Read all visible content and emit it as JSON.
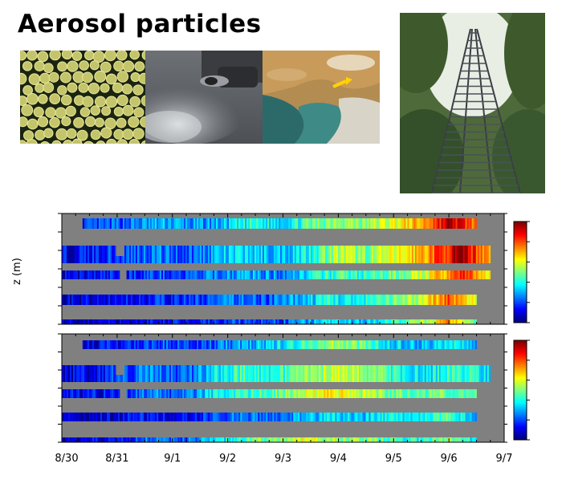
{
  "heading": "Aerosol particles",
  "photos": [
    {
      "icon": "particles-microscope-photo"
    },
    {
      "icon": "exhaust-smoke-photo"
    },
    {
      "icon": "satellite-dust-photo"
    },
    {
      "icon": "measurement-tower-photo"
    }
  ],
  "chart_data": {
    "type": "heatmap",
    "ylabel": "z (m)",
    "xlabel": "",
    "x_ticks": [
      "8/30",
      "8/31",
      "9/1",
      "9/2",
      "9/3",
      "9/4",
      "9/5",
      "9/6",
      "9/7"
    ],
    "xlim": [
      "8/30",
      "9/7"
    ],
    "colormap": "jet",
    "panels": [
      {
        "levels": [
          {
            "start": "8/30 09:00",
            "end": "9/6 12:00",
            "profile": [
              0.15,
              0.2,
              0.25,
              0.3,
              0.25,
              0.3,
              0.4,
              0.35,
              0.45,
              0.55,
              0.5,
              0.6,
              0.7,
              0.95,
              0.75
            ]
          },
          {
            "start": "8/30",
            "end": "9/6 18:00",
            "profile": [
              0.1,
              0.15,
              0.2,
              0.25,
              0.2,
              0.3,
              0.35,
              0.3,
              0.4,
              0.55,
              0.5,
              0.6,
              0.75,
              0.95,
              0.7
            ]
          },
          {
            "start": "8/30",
            "end": "9/6 18:00",
            "profile": [
              0.1,
              0.12,
              0.15,
              0.2,
              0.18,
              0.25,
              0.3,
              0.25,
              0.35,
              0.45,
              0.4,
              0.5,
              0.6,
              0.85,
              0.6
            ]
          },
          {
            "start": "8/30",
            "end": "9/6 12:00",
            "profile": [
              0.08,
              0.1,
              0.12,
              0.15,
              0.15,
              0.2,
              0.25,
              0.2,
              0.3,
              0.4,
              0.35,
              0.45,
              0.55,
              0.8,
              0.55
            ]
          },
          {
            "start": "8/30",
            "end": "9/6 12:00",
            "profile": [
              0.06,
              0.08,
              0.1,
              0.12,
              0.12,
              0.15,
              0.2,
              0.18,
              0.25,
              0.35,
              0.3,
              0.4,
              0.5,
              0.7,
              0.5
            ]
          }
        ]
      },
      {
        "levels": [
          {
            "start": "8/30 09:00",
            "end": "9/6 12:00",
            "profile": [
              0.1,
              0.12,
              0.15,
              0.2,
              0.15,
              0.25,
              0.3,
              0.35,
              0.45,
              0.55,
              0.45,
              0.35,
              0.3,
              0.4,
              0.3
            ]
          },
          {
            "start": "8/30",
            "end": "9/6 18:00",
            "profile": [
              0.08,
              0.12,
              0.2,
              0.25,
              0.2,
              0.35,
              0.45,
              0.4,
              0.5,
              0.6,
              0.5,
              0.4,
              0.35,
              0.45,
              0.35
            ]
          },
          {
            "start": "8/30",
            "end": "9/6 12:00",
            "profile": [
              0.1,
              0.12,
              0.15,
              0.25,
              0.2,
              0.35,
              0.4,
              0.45,
              0.55,
              0.65,
              0.55,
              0.5,
              0.45,
              0.5,
              0.4
            ]
          },
          {
            "start": "8/30",
            "end": "9/6 12:00",
            "profile": [
              0.05,
              0.08,
              0.1,
              0.15,
              0.1,
              0.2,
              0.25,
              0.2,
              0.3,
              0.35,
              0.3,
              0.4,
              0.35,
              0.45,
              0.3
            ]
          },
          {
            "start": "8/30",
            "end": "9/6 12:00",
            "profile": [
              0.05,
              0.1,
              0.15,
              0.25,
              0.2,
              0.3,
              0.45,
              0.5,
              0.6,
              0.55,
              0.5,
              0.45,
              0.4,
              0.5,
              0.35
            ]
          }
        ]
      }
    ]
  }
}
